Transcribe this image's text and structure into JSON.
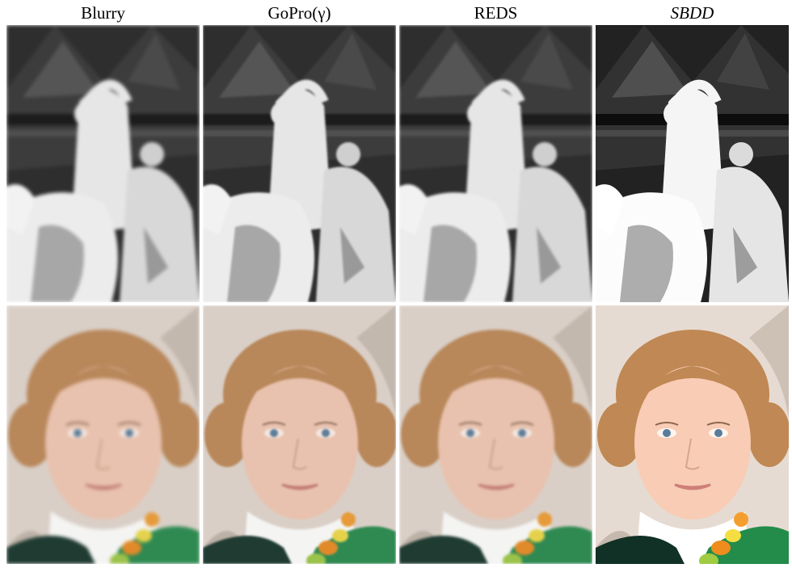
{
  "columns": [
    {
      "title": "Blurry",
      "style": "normal"
    },
    {
      "title": "GoPro(γ)",
      "style": "normal"
    },
    {
      "title": "REDS",
      "style": "normal"
    },
    {
      "title": "SBDD",
      "style": "italic"
    }
  ],
  "rows": [
    {
      "subject": "statue",
      "palette": {
        "sky": "#2e2e2e",
        "stone": "#e6e6e6",
        "shadow": "#6f6f6f",
        "dark": "#1c1c1c"
      }
    },
    {
      "subject": "portrait",
      "palette": {
        "bg": "#d9cfc7",
        "hair": "#b8875a",
        "skin": "#e8c2ae",
        "eyes": "#5d7d98",
        "lips": "#c47f78",
        "dress": "#1f3b32",
        "green": "#2f8a52",
        "collar": "#f4f4f2"
      }
    }
  ]
}
